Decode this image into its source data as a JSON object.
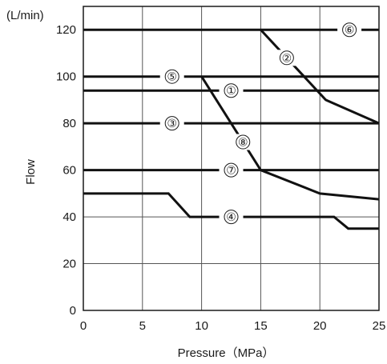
{
  "chart_data": {
    "type": "line",
    "xlabel": "Pressure（MPa）",
    "ylabel": "Flow",
    "yunit": "(L/min)",
    "xlim": [
      0,
      25
    ],
    "ylim": [
      0,
      130
    ],
    "xticks": [
      0,
      5,
      10,
      15,
      20,
      25
    ],
    "yticks": [
      0,
      20,
      40,
      60,
      80,
      100,
      120
    ],
    "grid": true,
    "series": [
      {
        "name": "①",
        "x": [
          0,
          25
        ],
        "y": [
          94,
          94
        ],
        "label_at": [
          12.5,
          94
        ]
      },
      {
        "name": "②",
        "x": [
          15,
          20.5,
          25
        ],
        "y": [
          120,
          90,
          80
        ],
        "label_at": [
          17.2,
          108
        ]
      },
      {
        "name": "③",
        "x": [
          0,
          25
        ],
        "y": [
          80,
          80
        ],
        "label_at": [
          7.5,
          80
        ]
      },
      {
        "name": "④",
        "x": [
          0,
          7.2,
          9,
          21.2,
          22.4,
          25
        ],
        "y": [
          50,
          50,
          40,
          40,
          35,
          35
        ],
        "label_at": [
          12.5,
          40
        ]
      },
      {
        "name": "⑤",
        "x": [
          0,
          25
        ],
        "y": [
          100,
          100
        ],
        "label_at": [
          7.5,
          100
        ]
      },
      {
        "name": "⑥",
        "x": [
          0,
          25
        ],
        "y": [
          120,
          120
        ],
        "label_at": [
          22.5,
          120
        ]
      },
      {
        "name": "⑦",
        "x": [
          0,
          25
        ],
        "y": [
          60,
          60
        ],
        "label_at": [
          12.5,
          60
        ]
      },
      {
        "name": "⑧",
        "x": [
          10,
          15,
          20,
          25
        ],
        "y": [
          100,
          60,
          50,
          47.5
        ],
        "label_at": [
          13.5,
          72
        ]
      }
    ]
  }
}
